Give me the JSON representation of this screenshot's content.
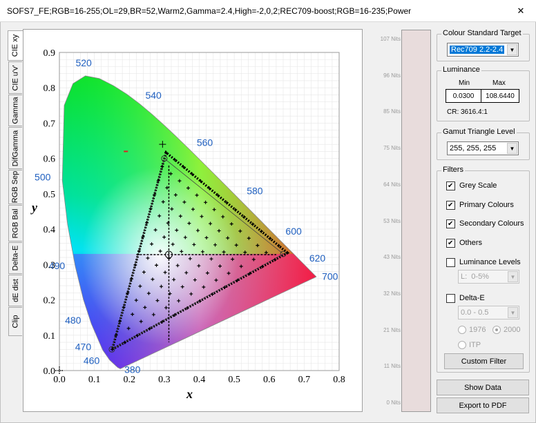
{
  "window": {
    "title": "SOFS7_FE;RGB=16-255;OL=29,BR=52,Warm2,Gamma=2.4,High=-2,0,2;REC709-boost;RGB=16-235;Power",
    "close_glyph": "✕"
  },
  "tabs": [
    {
      "label": "CIE xy",
      "active": true
    },
    {
      "label": "CIE u'v'",
      "active": false
    },
    {
      "label": "Gamma",
      "active": false
    },
    {
      "label": "DifGamma",
      "active": false
    },
    {
      "label": "RGB Sep",
      "active": false
    },
    {
      "label": "RGB Bal",
      "active": false
    },
    {
      "label": "Delta-E",
      "active": false
    },
    {
      "label": "dE dist",
      "active": false
    },
    {
      "label": "Clip",
      "active": false
    }
  ],
  "chart_data": {
    "type": "scatter",
    "xlabel": "x",
    "ylabel": "y",
    "xlim": [
      0,
      0.8
    ],
    "ylim": [
      0,
      0.9
    ],
    "grid": true,
    "x_ticks": [
      "0.0",
      "0.1",
      "0.2",
      "0.3",
      "0.4",
      "0.5",
      "0.6",
      "0.7",
      "0.8"
    ],
    "y_ticks": [
      "0.0",
      "0.1",
      "0.2",
      "0.3",
      "0.4",
      "0.5",
      "0.6",
      "0.7",
      "0.8",
      "0.9"
    ],
    "wavelength_labels": [
      {
        "nm": "380",
        "x": 0.174,
        "y": 0.005
      },
      {
        "nm": "460",
        "x": 0.144,
        "y": 0.03
      },
      {
        "nm": "470",
        "x": 0.124,
        "y": 0.058
      },
      {
        "nm": "480",
        "x": 0.091,
        "y": 0.133
      },
      {
        "nm": "490",
        "x": 0.045,
        "y": 0.295
      },
      {
        "nm": "500",
        "x": 0.008,
        "y": 0.538
      },
      {
        "nm": "520",
        "x": 0.074,
        "y": 0.834
      },
      {
        "nm": "540",
        "x": 0.23,
        "y": 0.754
      },
      {
        "nm": "560",
        "x": 0.373,
        "y": 0.624
      },
      {
        "nm": "580",
        "x": 0.512,
        "y": 0.487
      },
      {
        "nm": "600",
        "x": 0.627,
        "y": 0.373
      },
      {
        "nm": "620",
        "x": 0.691,
        "y": 0.308
      },
      {
        "nm": "700",
        "x": 0.735,
        "y": 0.265
      }
    ],
    "locus": [
      [
        0.1741,
        0.005
      ],
      [
        0.1666,
        0.0089
      ],
      [
        0.144,
        0.0297
      ],
      [
        0.1241,
        0.0578
      ],
      [
        0.0913,
        0.1327
      ],
      [
        0.0687,
        0.2007
      ],
      [
        0.0454,
        0.295
      ],
      [
        0.0235,
        0.4127
      ],
      [
        0.0082,
        0.5384
      ],
      [
        0.0139,
        0.7502
      ],
      [
        0.0389,
        0.812
      ],
      [
        0.0743,
        0.8338
      ],
      [
        0.1142,
        0.8262
      ],
      [
        0.1547,
        0.8059
      ],
      [
        0.1929,
        0.7816
      ],
      [
        0.2296,
        0.7543
      ],
      [
        0.2658,
        0.7243
      ],
      [
        0.3016,
        0.6923
      ],
      [
        0.3373,
        0.6589
      ],
      [
        0.3731,
        0.6245
      ],
      [
        0.4087,
        0.5896
      ],
      [
        0.4441,
        0.5547
      ],
      [
        0.4788,
        0.5202
      ],
      [
        0.5125,
        0.4866
      ],
      [
        0.5448,
        0.4544
      ],
      [
        0.5752,
        0.4242
      ],
      [
        0.6029,
        0.3965
      ],
      [
        0.627,
        0.3725
      ],
      [
        0.6482,
        0.3514
      ],
      [
        0.6658,
        0.334
      ],
      [
        0.6915,
        0.3083
      ],
      [
        0.7347,
        0.2653
      ]
    ],
    "target_gamut": {
      "red": [
        0.64,
        0.33
      ],
      "green": [
        0.3,
        0.6
      ],
      "blue": [
        0.15,
        0.06
      ],
      "white": [
        0.3127,
        0.329
      ]
    },
    "measured_gamut": {
      "red": [
        0.652,
        0.333
      ],
      "green": [
        0.305,
        0.617
      ],
      "blue": [
        0.151,
        0.06
      ],
      "white": [
        0.313,
        0.328
      ]
    },
    "small_marker": [
      0.19,
      0.62
    ]
  },
  "luminance_scale": {
    "ticks": [
      "107 Nits",
      "96 Nits",
      "85 Nits",
      "75 Nits",
      "64 Nits",
      "53 Nits",
      "43 Nits",
      "32 Nits",
      "21 Nits",
      "11 Nits",
      "0 Nits"
    ],
    "bar_color": "#e8dcdc"
  },
  "colour_standard": {
    "legend": "Colour Standard Target",
    "value": "Rec709 2.2-2.4"
  },
  "luminance": {
    "legend": "Luminance",
    "min_label": "Min",
    "max_label": "Max",
    "min_value": "0.0300",
    "max_value": "108.6440",
    "cr": "CR: 3616.4:1"
  },
  "gamut_level": {
    "legend": "Gamut Triangle Level",
    "value": "255, 255, 255"
  },
  "filters": {
    "legend": "Filters",
    "grey_scale": {
      "label": "Grey Scale",
      "checked": true
    },
    "primary": {
      "label": "Primary Colours",
      "checked": true
    },
    "secondary": {
      "label": "Secondary Colours",
      "checked": true
    },
    "others": {
      "label": "Others",
      "checked": true
    },
    "lum_levels": {
      "label": "Luminance Levels",
      "checked": false,
      "select": "L:  0-5%"
    },
    "delta_e": {
      "label": "Delta-E",
      "checked": false,
      "select": "0.0 - 0.5"
    },
    "radio_1976": "1976",
    "radio_2000": "2000",
    "radio_itp": "ITP",
    "custom_filter": "Custom Filter"
  },
  "buttons": {
    "show_data": "Show Data",
    "export_pdf": "Export to PDF"
  }
}
